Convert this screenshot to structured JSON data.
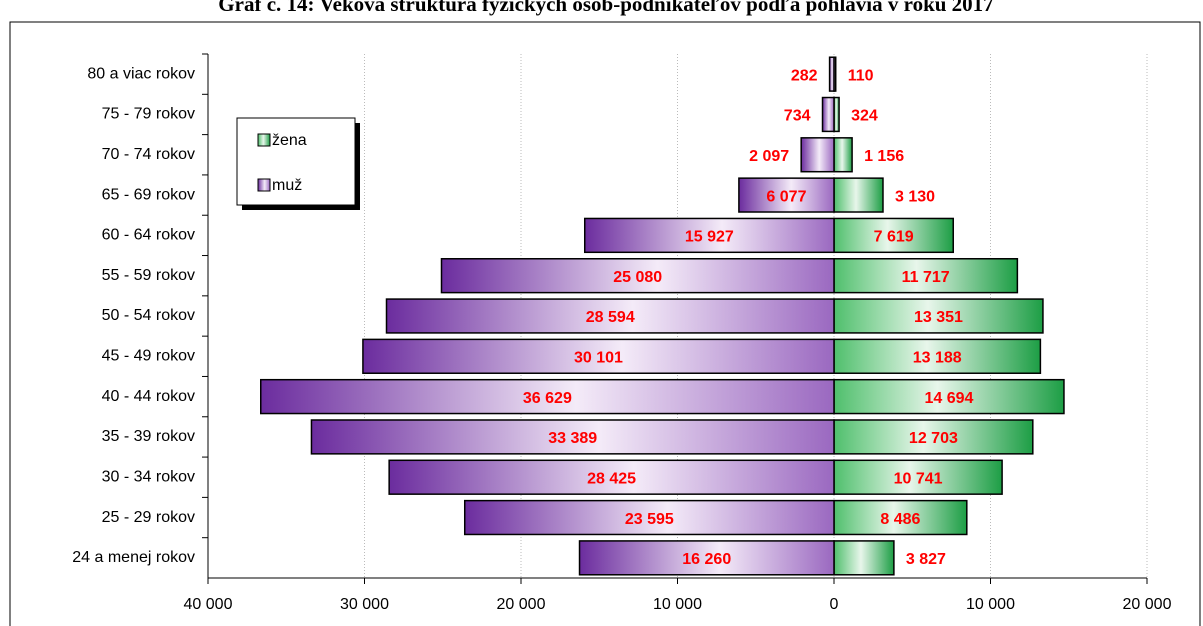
{
  "chart_data": {
    "type": "pyramid",
    "title": "Graf č. 14: Veková štruktúra fyzických osôb-podnikateľov podľa pohlavia v roku 2017",
    "categories": [
      "80 a viac rokov",
      "75 - 79 rokov",
      "70 - 74 rokov",
      "65 - 69 rokov",
      "60 - 64 rokov",
      "55 - 59 rokov",
      "50 - 54 rokov",
      "45 - 49 rokov",
      "40 - 44 rokov",
      "35 - 39 rokov",
      "30 - 34 rokov",
      "25 - 29 rokov",
      "24 a menej rokov"
    ],
    "series": [
      {
        "name": "žena",
        "color": "#2fae55",
        "side": "right",
        "values": [
          110,
          324,
          1156,
          3130,
          7619,
          11717,
          13351,
          13188,
          14694,
          12703,
          10741,
          8486,
          3827
        ],
        "value_labels": [
          "110",
          "324",
          "1 156",
          "3 130",
          "7 619",
          "11 717",
          "13 351",
          "13 188",
          "14 694",
          "12 703",
          "10 741",
          "8 486",
          "3 827"
        ]
      },
      {
        "name": "muž",
        "color": "#6b2c9e",
        "side": "left",
        "values": [
          282,
          734,
          2097,
          6077,
          15927,
          25080,
          28594,
          30101,
          36629,
          33389,
          28425,
          23595,
          16260
        ],
        "value_labels": [
          "282",
          "734",
          "2 097",
          "6 077",
          "15 927",
          "25 080",
          "28 594",
          "30 101",
          "36 629",
          "33 389",
          "28 425",
          "23 595",
          "16 260"
        ]
      }
    ],
    "xlim": [
      -40000,
      20000
    ],
    "xticks": [
      {
        "value": -40000,
        "label": "40 000"
      },
      {
        "value": -30000,
        "label": "30 000"
      },
      {
        "value": -20000,
        "label": "20 000"
      },
      {
        "value": -10000,
        "label": "10 000"
      },
      0,
      {
        "value": 10000,
        "label": "10 000"
      },
      {
        "value": 20000,
        "label": "20 000"
      }
    ],
    "grid": true
  }
}
